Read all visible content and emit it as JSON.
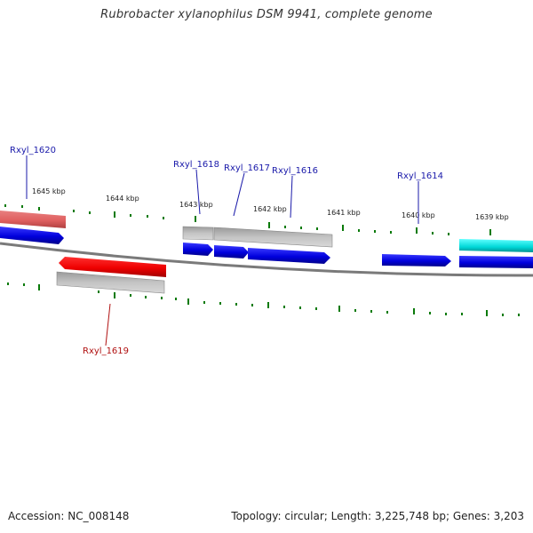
{
  "header": {
    "title": "Rubrobacter xylanophilus DSM 9941, complete genome"
  },
  "footer": {
    "accession": "Accession: NC_008148",
    "summary": "Topology: circular; Length: 3,225,748 bp; Genes: 3,203"
  },
  "scale_labels": [
    "1645 kbp",
    "1644 kbp",
    "1643 kbp",
    "1642 kbp",
    "1641 kbp",
    "1640 kbp",
    "1639 kbp"
  ],
  "gene_labels": {
    "rxyl_1620": "Rxyl_1620",
    "rxyl_1618": "Rxyl_1618",
    "rxyl_1617": "Rxyl_1617",
    "rxyl_1616": "Rxyl_1616",
    "rxyl_1614": "Rxyl_1614",
    "rxyl_1619": "Rxyl_1619"
  },
  "colors": {
    "forward_gene": "#0000e0",
    "reverse_gene": "#ee0000",
    "highlight_forward": "#00cccc",
    "highlight_reverse": "#e06060",
    "rna_gray": "#b8b8b8",
    "backbone": "#777777",
    "tick": "#006600",
    "label_forward": "#1a1aaa",
    "label_reverse": "#b01010"
  }
}
